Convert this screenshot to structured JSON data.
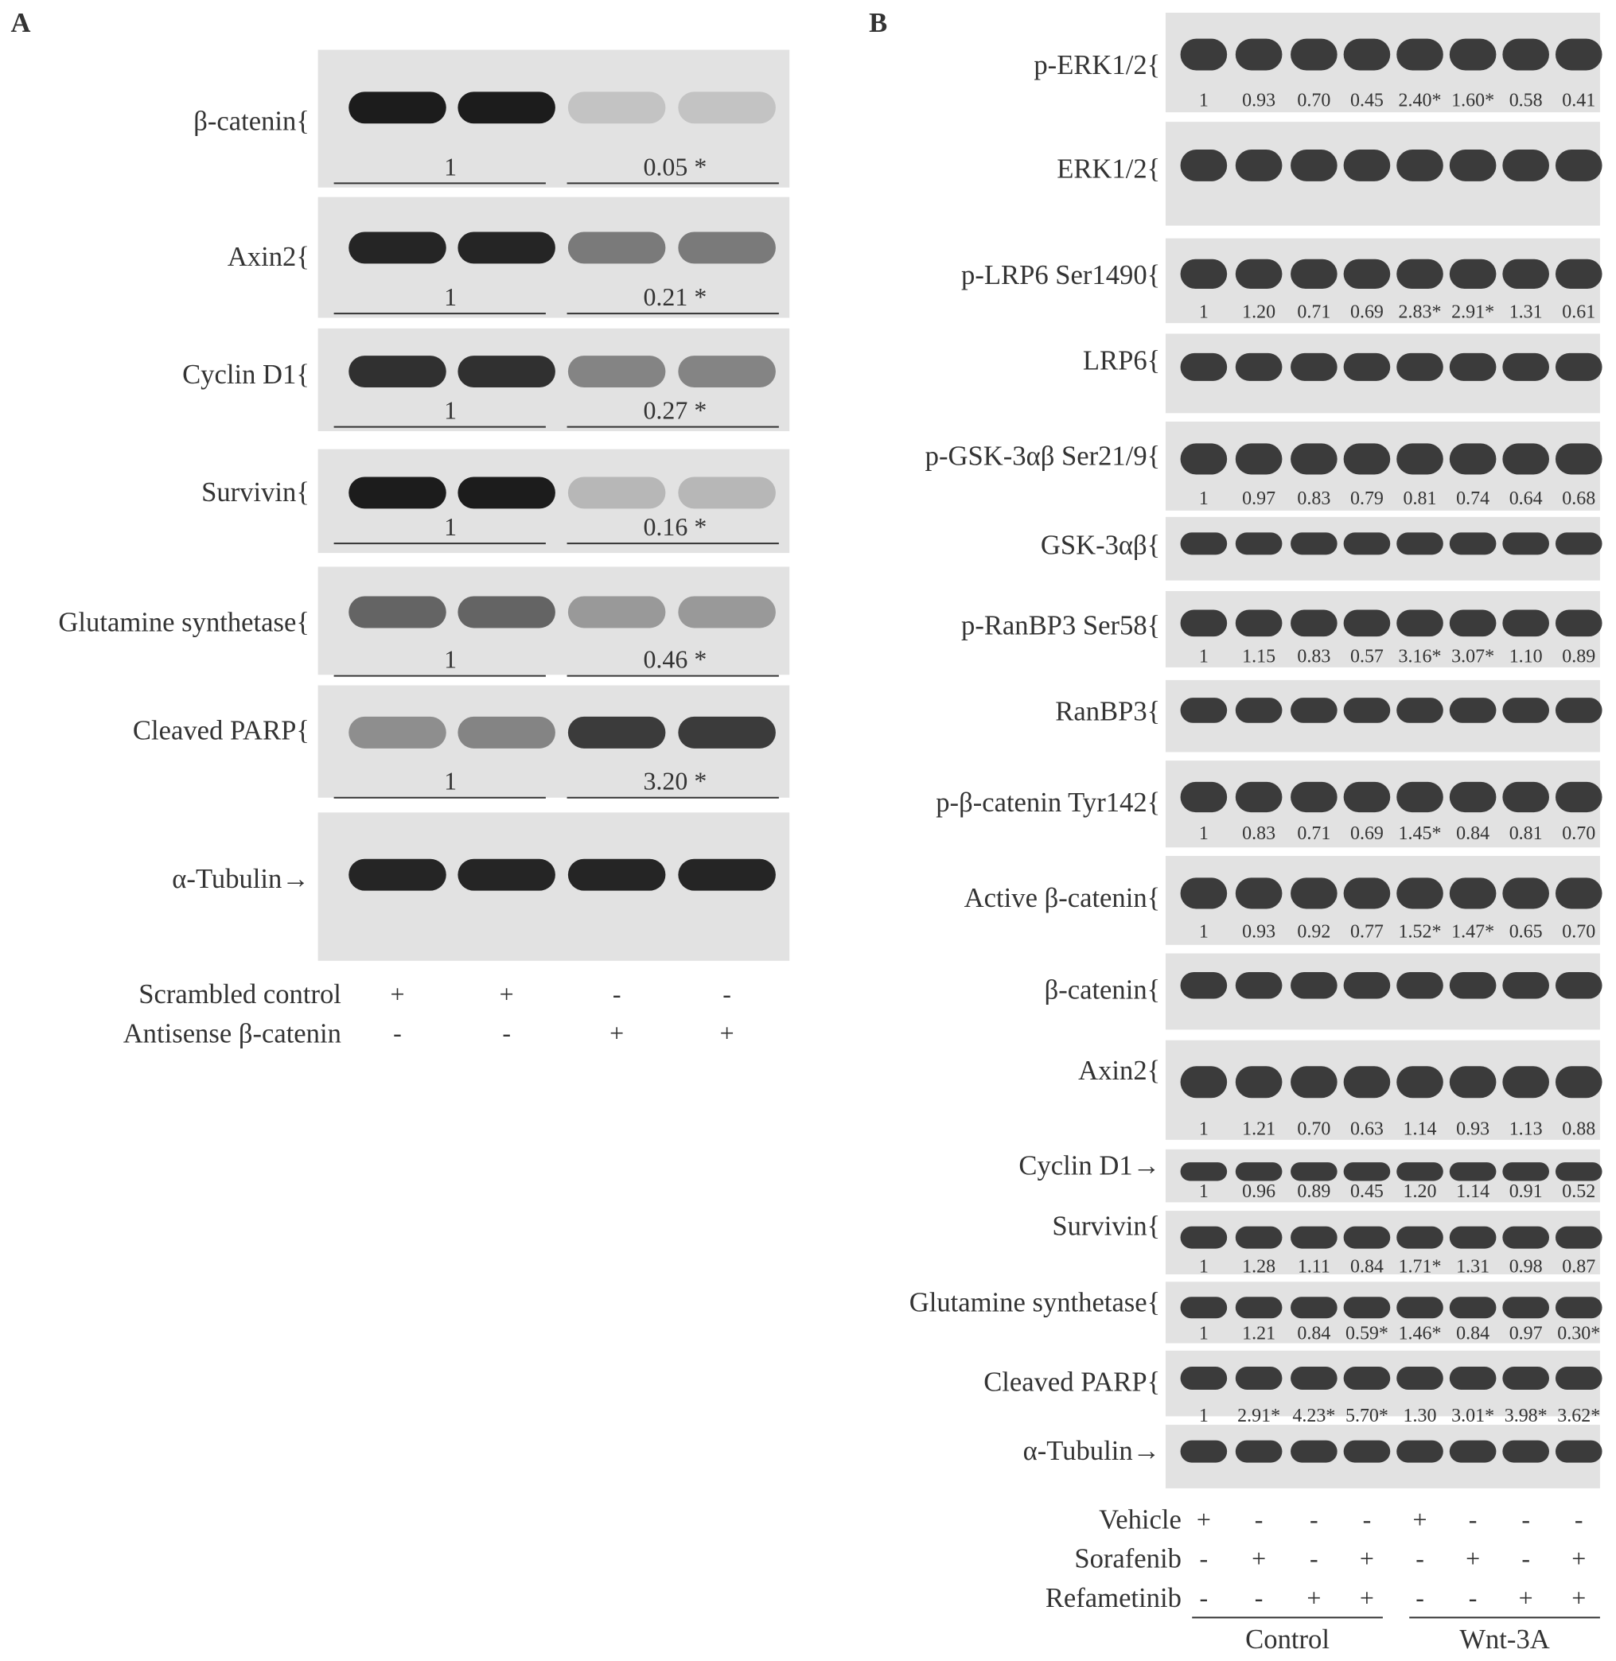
{
  "panel_a": {
    "label": "A",
    "blots": [
      {
        "label": "β-catenin{",
        "values": [
          "1",
          "0.05 *"
        ]
      },
      {
        "label": "Axin2{",
        "values": [
          "1",
          "0.21 *"
        ]
      },
      {
        "label": "Cyclin D1{",
        "values": [
          "1",
          "0.27 *"
        ]
      },
      {
        "label": "Survivin{",
        "values": [
          "1",
          "0.16 *"
        ]
      },
      {
        "label": "Glutamine synthetase{",
        "values": [
          "1",
          "0.46 *"
        ]
      },
      {
        "label": "Cleaved PARP{",
        "values": [
          "1",
          "3.20 *"
        ]
      },
      {
        "label": "α-Tubulin→",
        "values": []
      }
    ],
    "conditions": [
      {
        "label": "Scrambled control",
        "signs": [
          "+",
          "+",
          "-",
          "-"
        ]
      },
      {
        "label": "Antisense β-catenin",
        "signs": [
          "-",
          "-",
          "+",
          "+"
        ]
      }
    ]
  },
  "panel_b": {
    "label": "B",
    "blots": [
      {
        "label": "p-ERK1/2{",
        "values": [
          "1",
          "0.93",
          "0.70",
          "0.45",
          "2.40*",
          "1.60*",
          "0.58",
          "0.41"
        ]
      },
      {
        "label": "ERK1/2{",
        "values": []
      },
      {
        "label": "p-LRP6 Ser1490{",
        "values": [
          "1",
          "1.20",
          "0.71",
          "0.69",
          "2.83*",
          "2.91*",
          "1.31",
          "0.61"
        ]
      },
      {
        "label": "LRP6{",
        "values": []
      },
      {
        "label": "p-GSK-3αβ Ser21/9{",
        "values": [
          "1",
          "0.97",
          "0.83",
          "0.79",
          "0.81",
          "0.74",
          "0.64",
          "0.68"
        ]
      },
      {
        "label": "GSK-3αβ{",
        "values": []
      },
      {
        "label": "p-RanBP3 Ser58{",
        "values": [
          "1",
          "1.15",
          "0.83",
          "0.57",
          "3.16*",
          "3.07*",
          "1.10",
          "0.89"
        ]
      },
      {
        "label": "RanBP3{",
        "values": []
      },
      {
        "label": "p-β-catenin Tyr142{",
        "values": [
          "1",
          "0.83",
          "0.71",
          "0.69",
          "1.45*",
          "0.84",
          "0.81",
          "0.70"
        ]
      },
      {
        "label": "Active β-catenin{",
        "values": [
          "1",
          "0.93",
          "0.92",
          "0.77",
          "1.52*",
          "1.47*",
          "0.65",
          "0.70"
        ]
      },
      {
        "label": "β-catenin{",
        "values": []
      },
      {
        "label": "Axin2{",
        "values": [
          "1",
          "1.21",
          "0.70",
          "0.63",
          "1.14",
          "0.93",
          "1.13",
          "0.88"
        ]
      },
      {
        "label": "Cyclin D1→",
        "values": [
          "1",
          "0.96",
          "0.89",
          "0.45",
          "1.20",
          "1.14",
          "0.91",
          "0.52"
        ]
      },
      {
        "label": "Survivin{",
        "values": [
          "1",
          "1.28",
          "1.11",
          "0.84",
          "1.71*",
          "1.31",
          "0.98",
          "0.87"
        ]
      },
      {
        "label": "Glutamine synthetase{",
        "values": [
          "1",
          "1.21",
          "0.84",
          "0.59*",
          "1.46*",
          "0.84",
          "0.97",
          "0.30*"
        ]
      },
      {
        "label": "Cleaved PARP{",
        "values": [
          "1",
          "2.91*",
          "4.23*",
          "5.70*",
          "1.30",
          "3.01*",
          "3.98*",
          "3.62*"
        ]
      },
      {
        "label": "α-Tubulin→",
        "values": []
      }
    ],
    "conditions": [
      {
        "label": "Vehicle",
        "signs": [
          "+",
          "-",
          "-",
          "-",
          "+",
          "-",
          "-",
          "-"
        ]
      },
      {
        "label": "Sorafenib",
        "signs": [
          "-",
          "+",
          "-",
          "+",
          "-",
          "+",
          "-",
          "+"
        ]
      },
      {
        "label": "Refametinib",
        "signs": [
          "-",
          "-",
          "+",
          "+",
          "-",
          "-",
          "+",
          "+"
        ]
      }
    ],
    "groups": [
      "Control",
      "Wnt-3A"
    ]
  }
}
